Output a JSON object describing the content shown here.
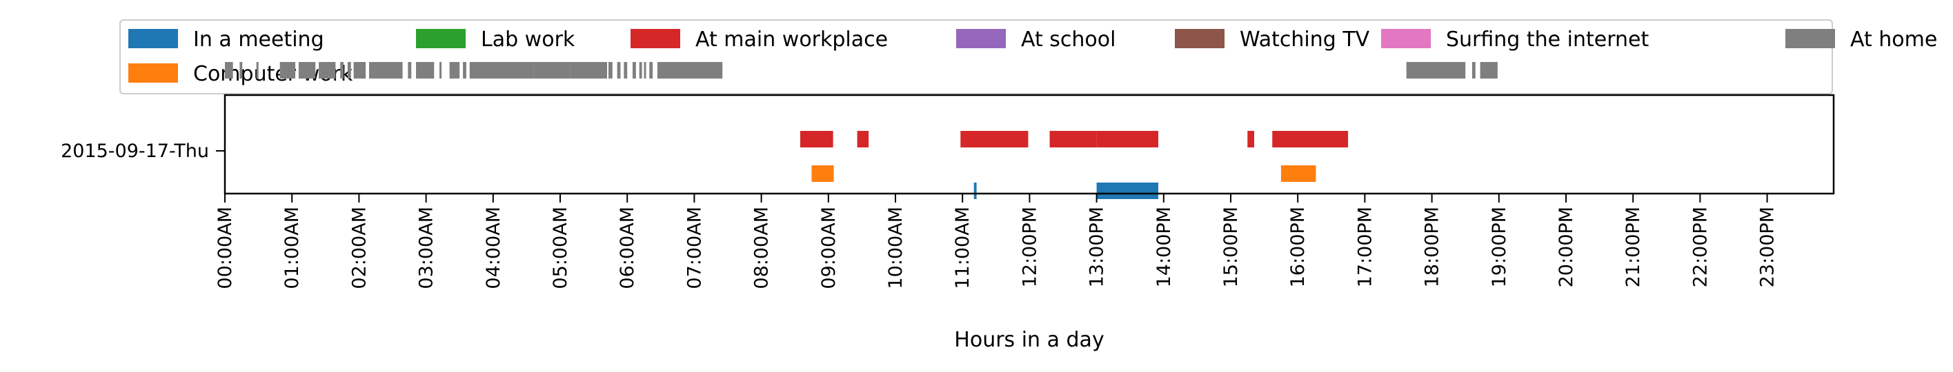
{
  "chart_data": {
    "type": "timeline",
    "row_label": "2015-09-17-Thu",
    "xlabel": "Hours in a day",
    "xlim": [
      0,
      24
    ],
    "xticks": [
      "00:00AM",
      "01:00AM",
      "02:00AM",
      "03:00AM",
      "04:00AM",
      "05:00AM",
      "06:00AM",
      "07:00AM",
      "08:00AM",
      "09:00AM",
      "10:00AM",
      "11:00AM",
      "12:00PM",
      "13:00PM",
      "14:00PM",
      "15:00PM",
      "16:00PM",
      "17:00PM",
      "18:00PM",
      "19:00PM",
      "20:00PM",
      "21:00PM",
      "22:00PM",
      "23:00PM"
    ],
    "legend": {
      "placement": "top",
      "columns": 7
    },
    "series": [
      {
        "name": "In a meeting",
        "color": "#1f77b4",
        "lane": 0,
        "segments": [
          [
            11.17,
            11.21
          ],
          [
            13.0,
            13.92
          ]
        ]
      },
      {
        "name": "Computer work",
        "color": "#ff7f0e",
        "lane": 1,
        "segments": [
          [
            8.75,
            9.08
          ],
          [
            15.75,
            16.27
          ]
        ]
      },
      {
        "name": "Lab work",
        "color": "#2ca02c",
        "lane": 2,
        "segments": []
      },
      {
        "name": "At main workplace",
        "color": "#d62728",
        "lane": 3,
        "segments": [
          [
            8.58,
            9.07
          ],
          [
            9.43,
            9.6
          ],
          [
            10.97,
            11.98
          ],
          [
            12.3,
            13.0
          ],
          [
            13.0,
            13.92
          ],
          [
            15.25,
            15.35
          ],
          [
            15.62,
            16.75
          ]
        ]
      },
      {
        "name": "At school",
        "color": "#9467bd",
        "lane": 4,
        "segments": []
      },
      {
        "name": "Watching TV",
        "color": "#8c564b",
        "lane": 5,
        "segments": []
      },
      {
        "name": "Surfing the internet",
        "color": "#e377c2",
        "lane": 6,
        "segments": []
      },
      {
        "name": "At home",
        "color": "#7f7f7f",
        "lane": 7,
        "segments": [
          [
            0.0,
            0.12
          ],
          [
            0.22,
            0.26
          ],
          [
            0.47,
            0.5
          ],
          [
            0.82,
            1.05
          ],
          [
            1.1,
            1.35
          ],
          [
            1.4,
            1.65
          ],
          [
            1.72,
            1.77
          ],
          [
            1.83,
            1.88
          ],
          [
            1.92,
            2.1
          ],
          [
            2.15,
            2.65
          ],
          [
            2.73,
            2.78
          ],
          [
            2.85,
            3.12
          ],
          [
            3.2,
            3.22
          ],
          [
            3.35,
            3.5
          ],
          [
            3.55,
            3.6
          ],
          [
            3.65,
            3.75
          ],
          [
            3.72,
            4.6
          ],
          [
            4.6,
            5.15
          ],
          [
            5.15,
            5.7
          ],
          [
            5.72,
            5.78
          ],
          [
            5.85,
            5.9
          ],
          [
            5.95,
            6.0
          ],
          [
            6.08,
            6.13
          ],
          [
            6.18,
            6.22
          ],
          [
            6.25,
            6.28
          ],
          [
            6.33,
            6.38
          ],
          [
            6.45,
            7.42
          ],
          [
            17.62,
            18.5
          ],
          [
            18.6,
            18.65
          ],
          [
            18.72,
            18.98
          ]
        ]
      }
    ]
  }
}
